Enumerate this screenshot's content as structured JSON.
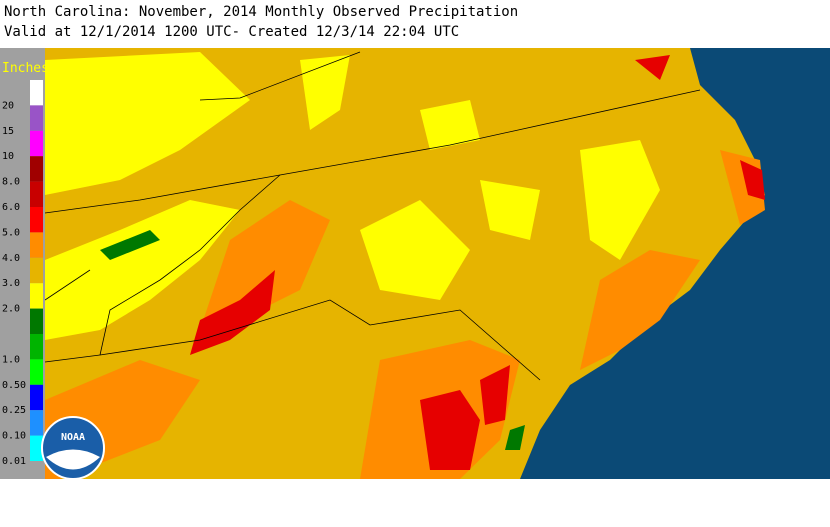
{
  "header": {
    "title": "North Carolina: November, 2014 Monthly Observed Precipitation",
    "subtitle": "Valid at 12/1/2014 1200 UTC- Created 12/3/14 22:04 UTC"
  },
  "legend": {
    "title": "Inches",
    "entries": [
      {
        "label": "20",
        "color": "#ffffff"
      },
      {
        "label": "15",
        "color": "#9954c7"
      },
      {
        "label": "10",
        "color": "#ff00ff"
      },
      {
        "label": "8.0",
        "color": "#a00000"
      },
      {
        "label": "6.0",
        "color": "#c80000"
      },
      {
        "label": "5.0",
        "color": "#ff0000"
      },
      {
        "label": "4.0",
        "color": "#ff8c00"
      },
      {
        "label": "3.0",
        "color": "#e6b400"
      },
      {
        "label": "2.0",
        "color": "#ffff00"
      },
      {
        "label": null,
        "color": "#007800"
      },
      {
        "label": "1.0",
        "color": "#00b400"
      },
      {
        "label": "0.50",
        "color": "#00ff00"
      },
      {
        "label": "0.25",
        "color": "#0000ff"
      },
      {
        "label": "0.10",
        "color": "#1e90ff"
      },
      {
        "label": "0.01",
        "color": "#00ffff"
      }
    ]
  },
  "logo": {
    "text": "NOAA"
  }
}
